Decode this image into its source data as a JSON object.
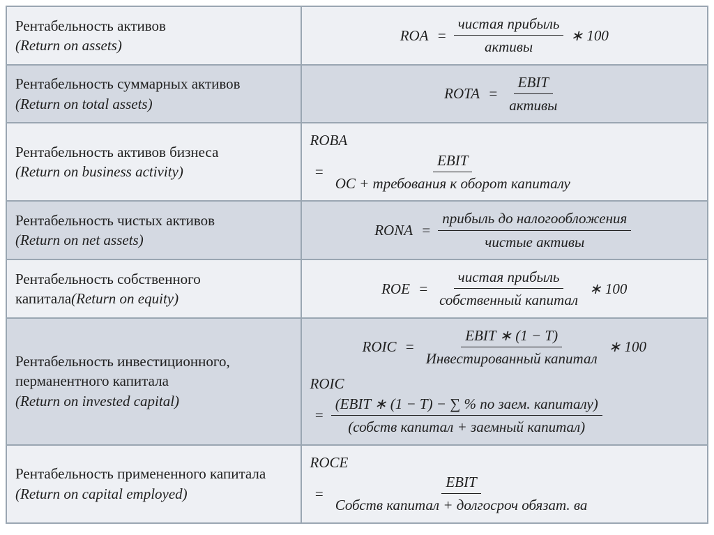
{
  "colors": {
    "row_light": "#eef0f4",
    "row_dark": "#d4d9e2",
    "border": "#9aa6b2",
    "text": "#202020"
  },
  "rows": [
    {
      "shade": "light",
      "label_ru": "Рентабельность активов",
      "label_en": "(Return on assets)",
      "formula": {
        "lhs": "ROA",
        "num": "чистая прибыль",
        "den": "активы",
        "tail": "∗ 100",
        "align": "center"
      }
    },
    {
      "shade": "dark",
      "label_ru": "Рентабельность суммарных активов",
      "label_en": "(Return on total assets)",
      "formula": {
        "lhs": "ROTA",
        "num": "EBIT",
        "den": "активы",
        "tail": "",
        "align": "center"
      }
    },
    {
      "shade": "light",
      "label_ru": "Рентабельность активов бизнеса",
      "label_en": "(Return on business activity)",
      "formula": {
        "stacked_lhs": true,
        "lhs_top": "ROBA",
        "num": "EBIT",
        "den": "ОС + требования к оборот капиталу",
        "tail": "",
        "align": "left"
      }
    },
    {
      "shade": "dark",
      "label_ru": "Рентабельность чистых активов",
      "label_en": "(Return on net assets)",
      "formula": {
        "lhs": "RONA",
        "num": "прибыль до налогообложения",
        "den": "чистые активы",
        "tail": "",
        "align": "center"
      }
    },
    {
      "shade": "light",
      "label_ru": "Рентабельность собственного капитала",
      "label_en": "(Return on equity)",
      "label_inline": true,
      "formula": {
        "lhs": "ROE",
        "num": "чистая прибыль",
        "den": "собственный капитал",
        "tail": "∗ 100",
        "align": "center"
      }
    },
    {
      "shade": "dark",
      "label_ru": "Рентабельность инвестиционного, перманентного капитала",
      "label_en": "(Return on invested capital)",
      "multi": [
        {
          "lhs": "ROIC",
          "num": "EBIT ∗ (1 − T)",
          "den": "Инвестированный капитал",
          "tail": "∗ 100",
          "align": "center"
        },
        {
          "stacked_lhs": true,
          "lhs_top": "ROIC",
          "num": "(EBIT ∗ (1 − T) − ∑ % по заем. капиталу)",
          "den": "(собств капитал + заемный капитал)",
          "tail": "",
          "align": "left"
        }
      ]
    },
    {
      "shade": "light",
      "label_ru": "Рентабельность примененного капитала",
      "label_en": "(Return on capital employed)",
      "formula": {
        "stacked_lhs": true,
        "lhs_top": "ROCE",
        "num": "EBIT",
        "den": "Собств капитал + долгосроч обязат. ва",
        "tail": "",
        "align": "left"
      }
    }
  ]
}
